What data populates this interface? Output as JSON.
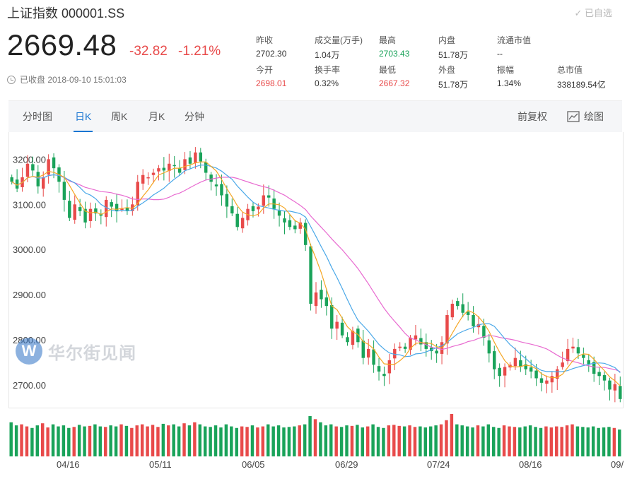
{
  "header": {
    "title": "上证指数 000001.SS",
    "watch_label": "✓ 已自选",
    "price": "2669.48",
    "change": "-32.82",
    "change_pct": "-1.21%",
    "status": "已收盘 2018-09-10 15:01:03"
  },
  "stats": [
    {
      "k": "昨收",
      "v": "2702.30",
      "tone": ""
    },
    {
      "k": "成交量(万手)",
      "v": "1.04万",
      "tone": ""
    },
    {
      "k": "最高",
      "v": "2703.43",
      "tone": "green"
    },
    {
      "k": "内盘",
      "v": "51.78万",
      "tone": ""
    },
    {
      "k": "流通市值",
      "v": "--",
      "tone": ""
    },
    {
      "k": "今开",
      "v": "2698.01",
      "tone": "red"
    },
    {
      "k": "换手率",
      "v": "0.32%",
      "tone": ""
    },
    {
      "k": "最低",
      "v": "2667.32",
      "tone": "red"
    },
    {
      "k": "外盘",
      "v": "51.78万",
      "tone": ""
    },
    {
      "k": "振幅",
      "v": "1.34%",
      "tone": ""
    },
    {
      "k": "总市值",
      "v": "338189.54亿",
      "tone": ""
    }
  ],
  "tabs": [
    "分时图",
    "日K",
    "周K",
    "月K",
    "分钟"
  ],
  "active_tab": "日K",
  "tools": {
    "adjust": "前复权",
    "draw": "绘图"
  },
  "watermark": "华尔街见闻",
  "colors": {
    "up": "#e84a4a",
    "down": "#1aa35a",
    "ma5": "#f5a623",
    "ma10": "#4aa8e8",
    "ma20": "#e86ad0"
  },
  "chart_data": {
    "type": "candlestick",
    "y_ticks": [
      "3200.00",
      "3100.00",
      "3000.00",
      "2900.00",
      "2800.00",
      "2700.00"
    ],
    "ylim": [
      2650,
      3260
    ],
    "x_labels": [
      "04/16",
      "05/11",
      "06/05",
      "06/29",
      "07/24",
      "08/16",
      "09/"
    ],
    "series_closes": [
      3150,
      3135,
      3160,
      3190,
      3175,
      3140,
      3160,
      3200,
      3180,
      3150,
      3110,
      3070,
      3100,
      3085,
      3060,
      3090,
      3080,
      3075,
      3110,
      3095,
      3085,
      3090,
      3085,
      3100,
      3150,
      3165,
      3160,
      3170,
      3180,
      3175,
      3190,
      3185,
      3170,
      3200,
      3190,
      3215,
      3195,
      3170,
      3150,
      3140,
      3120,
      3095,
      3080,
      3050,
      3070,
      3090,
      3085,
      3095,
      3120,
      3115,
      3090,
      3075,
      3060,
      3050,
      3045,
      3060,
      3010,
      2880,
      2905,
      2890,
      2875,
      2825,
      2840,
      2810,
      2795,
      2820,
      2795,
      2760,
      2780,
      2745,
      2730,
      2720,
      2755,
      2780,
      2785,
      2780,
      2805,
      2810,
      2790,
      2780,
      2775,
      2770,
      2795,
      2855,
      2880,
      2875,
      2860,
      2855,
      2830,
      2835,
      2805,
      2770,
      2735,
      2720,
      2740,
      2745,
      2760,
      2740,
      2735,
      2730,
      2715,
      2705,
      2710,
      2720,
      2735,
      2750,
      2780,
      2785,
      2770,
      2760,
      2745,
      2725,
      2720,
      2710,
      2690,
      2702,
      2669
    ]
  },
  "volume_data": [
    66,
    60,
    62,
    58,
    55,
    60,
    64,
    56,
    62,
    58,
    60,
    55,
    57,
    61,
    58,
    59,
    62,
    58,
    57,
    60,
    58,
    62,
    59,
    55,
    60,
    62,
    58,
    61,
    57,
    63,
    60,
    62,
    58,
    64,
    60,
    66,
    62,
    58,
    57,
    60,
    56,
    62,
    58,
    55,
    58,
    57,
    60,
    56,
    58,
    62,
    58,
    60,
    56,
    57,
    58,
    60,
    62,
    78,
    72,
    66,
    60,
    62,
    58,
    57,
    60,
    59,
    61,
    56,
    58,
    62,
    57,
    55,
    60,
    61,
    59,
    58,
    60,
    57,
    58,
    56,
    58,
    60,
    62,
    70,
    82,
    62,
    60,
    58,
    56,
    60,
    58,
    62,
    57,
    55,
    60,
    58,
    57,
    56,
    58,
    60,
    57,
    55,
    58,
    56,
    58,
    57,
    60,
    62,
    58,
    57,
    56,
    58,
    55,
    56,
    57,
    55,
    52
  ]
}
